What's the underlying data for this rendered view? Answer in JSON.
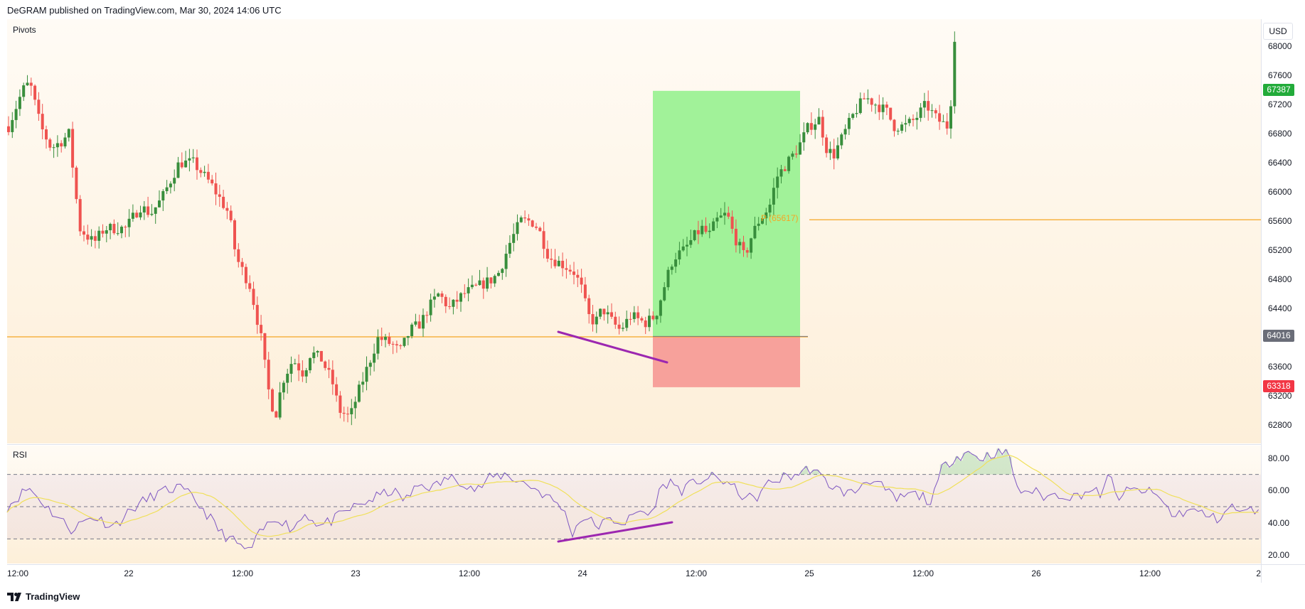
{
  "header": {
    "published_text": "DeGRAM published on TradingView.com, Mar 30, 2024 14:06 UTC"
  },
  "main_pane": {
    "indicator_label": "Pivots",
    "currency": "USD",
    "price_ticks": [
      "68000",
      "67600",
      "67200",
      "66800",
      "66400",
      "66000",
      "65600",
      "65200",
      "64800",
      "64400",
      "63600",
      "63200",
      "62800"
    ],
    "badges": {
      "current": {
        "text": "67387",
        "color": "#22ab3a"
      },
      "entry": {
        "text": "64016",
        "color": "#6a6d78"
      },
      "stop": {
        "text": "63318",
        "color": "#f23645"
      }
    },
    "pivot_label": "P (65617)"
  },
  "rsi_pane": {
    "indicator_label": "RSI",
    "ticks": [
      "80.00",
      "60.00",
      "40.00",
      "20.00"
    ]
  },
  "time_axis": {
    "ticks": [
      "12:00",
      "22",
      "12:00",
      "23",
      "12:00",
      "24",
      "12:00",
      "25",
      "12:00",
      "26",
      "12:00",
      "2"
    ]
  },
  "footer": {
    "brand": "TradingView"
  },
  "colors": {
    "up": "#388e3c",
    "down": "#ef5350",
    "pivot": "#f5a623",
    "profit_zone": "#a1f299",
    "loss_zone": "#f7a19b",
    "divergence": "#9c27b0",
    "rsi_line": "#7e57c2",
    "rsi_ma": "#f0e05a"
  }
}
